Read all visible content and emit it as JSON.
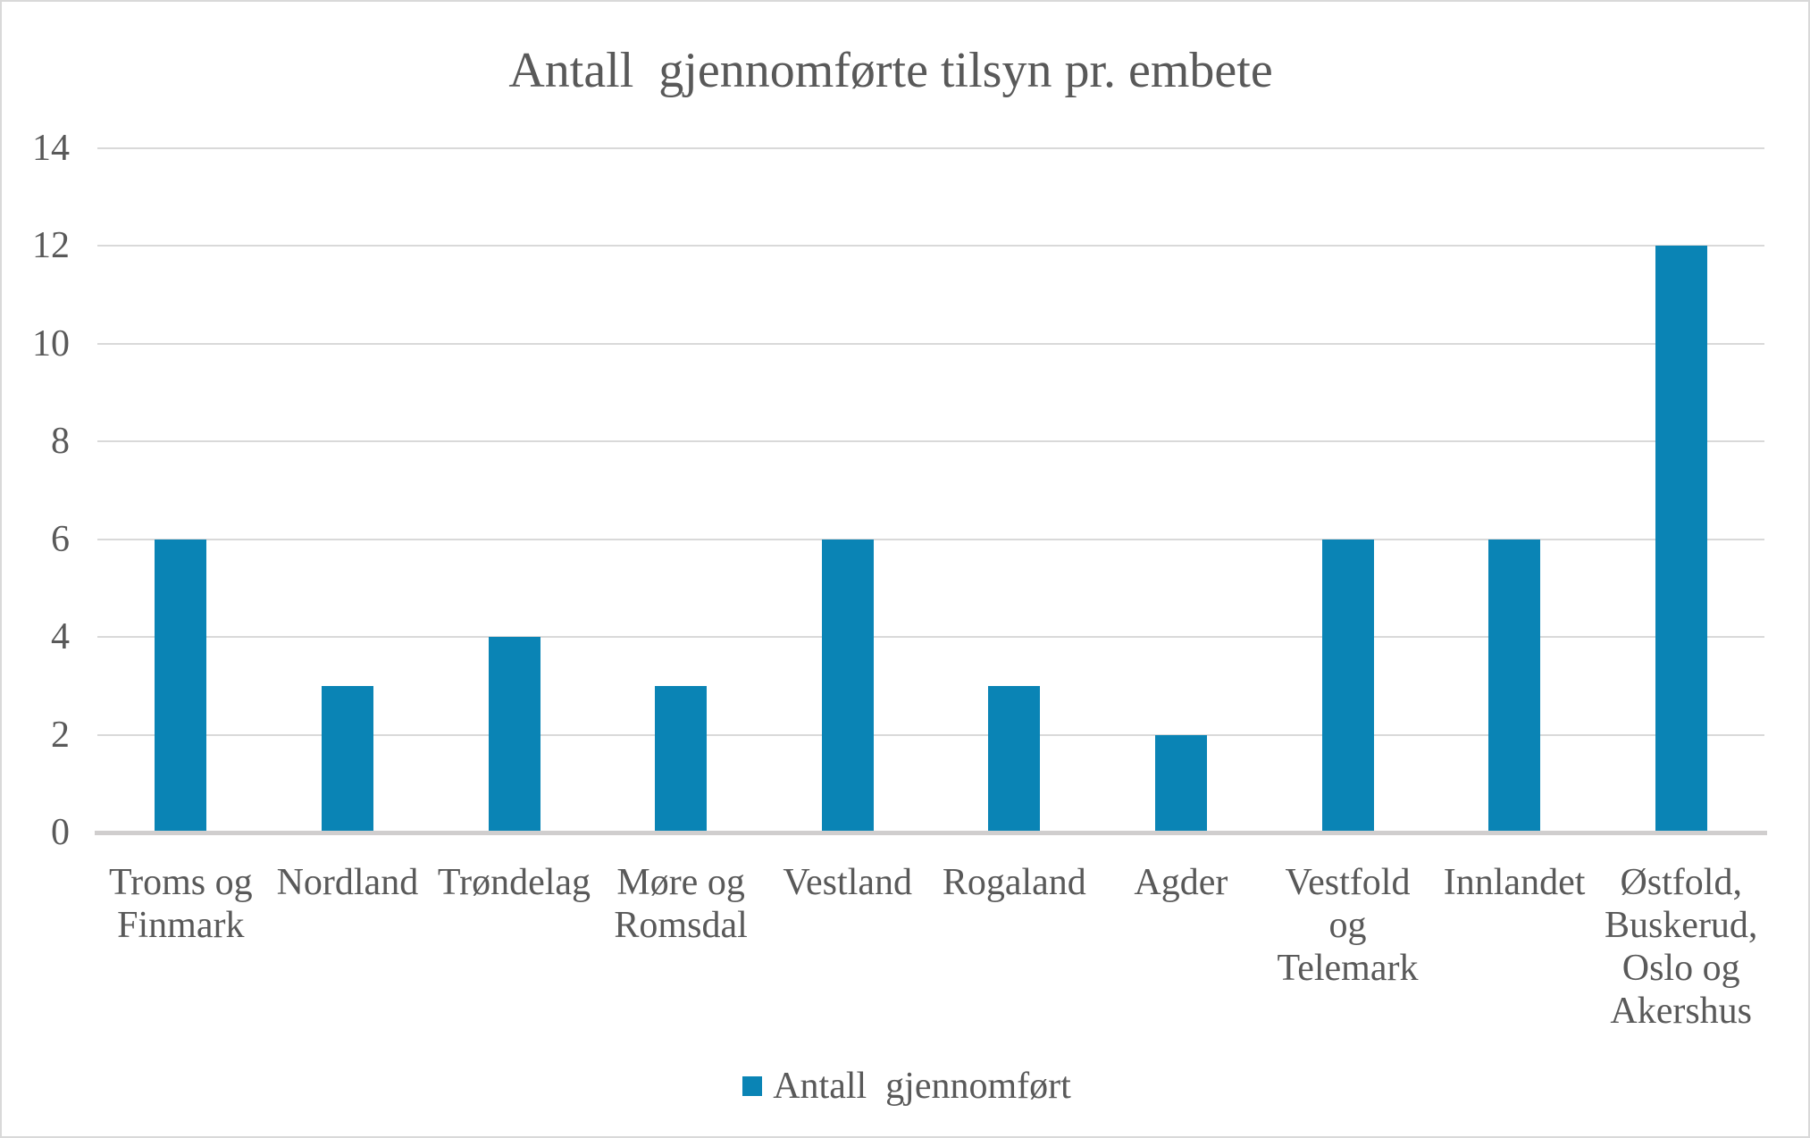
{
  "chart_data": {
    "type": "bar",
    "title": "Antall  gjennomførte tilsyn pr. embete",
    "categories": [
      "Troms og\nFinmark",
      "Nordland",
      "Trøndelag",
      "Møre og\nRomsdal",
      "Vestland",
      "Rogaland",
      "Agder",
      "Vestfold\nog\nTelemark",
      "Innlandet",
      "Østfold,\nBuskerud,\nOslo og\nAkershus"
    ],
    "values": [
      6,
      3,
      4,
      3,
      6,
      3,
      2,
      6,
      6,
      12
    ],
    "series": [
      {
        "name": "Antall  gjennomført",
        "values": [
          6,
          3,
          4,
          3,
          6,
          3,
          2,
          6,
          6,
          12
        ]
      }
    ],
    "xlabel": "",
    "ylabel": "",
    "ylim": [
      0,
      14
    ],
    "y_ticks": [
      0,
      2,
      4,
      6,
      8,
      10,
      12,
      14
    ],
    "grid": "horizontal",
    "legend_position": "bottom",
    "legend_label": "Antall  gjennomført",
    "colors": {
      "bar": "#0a84b5",
      "text": "#595959",
      "gridline": "#d9d9d9",
      "axis_line": "#d0cece",
      "frame_border": "#d9d9d9",
      "background": "#ffffff"
    }
  }
}
